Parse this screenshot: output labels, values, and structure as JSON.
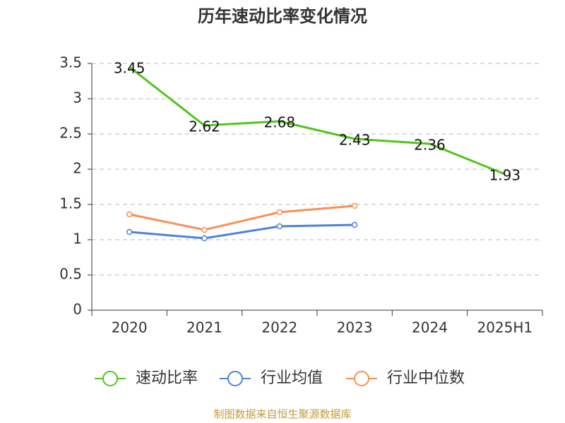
{
  "chart_data": {
    "type": "line",
    "title": "历年速动比率变化情况",
    "categories": [
      "2020",
      "2021",
      "2022",
      "2023",
      "2024",
      "2025H1"
    ],
    "series": [
      {
        "name": "速动比率",
        "color": "#52c41a",
        "values": [
          3.45,
          2.62,
          2.68,
          2.43,
          2.36,
          1.93
        ],
        "markers": false,
        "labels": true
      },
      {
        "name": "行业均值",
        "color": "#4f81d9",
        "values": [
          1.11,
          1.02,
          1.19,
          1.21,
          null,
          null
        ],
        "markers": true,
        "labels": false
      },
      {
        "name": "行业中位数",
        "color": "#f59058",
        "values": [
          1.36,
          1.14,
          1.39,
          1.48,
          null,
          null
        ],
        "markers": true,
        "labels": false
      }
    ],
    "ylim": [
      0,
      3.5
    ],
    "yticks": [
      0,
      0.5,
      1,
      1.5,
      2,
      2.5,
      3,
      3.5
    ],
    "grid": true,
    "legend": "bottom",
    "source": "制图数据来自恒生聚源数据库"
  }
}
